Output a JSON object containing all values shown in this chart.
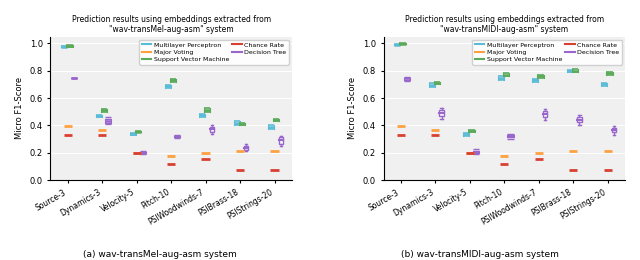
{
  "title_left": "Prediction results using embeddings extracted from\n\"wav-transMel-aug-asm\" system",
  "title_right": "Prediction results using embeddings extracted from\n\"wav-transMIDI-aug-asm\" system",
  "caption_left": "(a) wav-transMel-aug-asm system",
  "caption_right": "(b) wav-transMIDI-aug-asm system",
  "ylabel": "Micro F1-Score",
  "categories": [
    "Source-3",
    "Dynamics-3",
    "Velocity-5",
    "Pitch-10",
    "PSIWoodwinds-7",
    "PSIBrass-18",
    "PSIStrings-20"
  ],
  "ylim": [
    0.0,
    1.05
  ],
  "yticks": [
    0.0,
    0.2,
    0.4,
    0.6,
    0.8,
    1.0
  ],
  "colors": {
    "mlp": "#5bbcd8",
    "svm": "#5aaa5a",
    "dt": "#9966cc",
    "mv": "#ffa040",
    "cr": "#d84030"
  },
  "left": {
    "mlp_lines": [
      [
        0.97,
        0.984
      ],
      [
        0.458,
        0.478
      ],
      [
        0.33,
        0.342
      ],
      [
        0.675,
        0.695
      ],
      [
        0.46,
        0.485
      ],
      [
        0.405,
        0.43
      ],
      [
        0.375,
        0.4
      ]
    ],
    "svm_lines": [
      [
        0.977,
        0.987
      ],
      [
        0.498,
        0.52
      ],
      [
        0.348,
        0.362
      ],
      [
        0.72,
        0.74
      ],
      [
        0.498,
        0.525
      ],
      [
        0.4,
        0.42
      ],
      [
        0.43,
        0.45
      ]
    ],
    "dt": {
      "medians": [
        0.745,
        0.43,
        0.2,
        0.32,
        0.37,
        0.235,
        0.29
      ],
      "q1": [
        0.745,
        0.415,
        0.195,
        0.315,
        0.35,
        0.22,
        0.265
      ],
      "q3": [
        0.745,
        0.445,
        0.205,
        0.325,
        0.39,
        0.25,
        0.315
      ],
      "whislo": [
        0.745,
        0.41,
        0.19,
        0.31,
        0.335,
        0.21,
        0.248
      ],
      "whishi": [
        0.745,
        0.46,
        0.212,
        0.332,
        0.405,
        0.262,
        0.325
      ],
      "show_box": [
        false,
        false,
        false,
        false,
        true,
        true,
        true
      ]
    },
    "mv": [
      0.395,
      0.365,
      0.2,
      0.175,
      0.2,
      0.21,
      0.21
    ],
    "cr": [
      0.333,
      0.333,
      0.2,
      0.12,
      0.155,
      0.07,
      0.07
    ]
  },
  "right": {
    "mlp_lines": [
      [
        0.985,
        0.998
      ],
      [
        0.682,
        0.71
      ],
      [
        0.325,
        0.342
      ],
      [
        0.735,
        0.758
      ],
      [
        0.718,
        0.74
      ],
      [
        0.788,
        0.805
      ],
      [
        0.69,
        0.712
      ]
    ],
    "svm_lines": [
      [
        0.993,
        1.0
      ],
      [
        0.7,
        0.718
      ],
      [
        0.352,
        0.368
      ],
      [
        0.762,
        0.782
      ],
      [
        0.75,
        0.77
      ],
      [
        0.792,
        0.81
      ],
      [
        0.772,
        0.792
      ]
    ],
    "dt": {
      "medians": [
        0.745,
        0.49,
        0.205,
        0.32,
        0.48,
        0.44,
        0.365
      ],
      "q1": [
        0.735,
        0.468,
        0.197,
        0.312,
        0.46,
        0.422,
        0.35
      ],
      "q3": [
        0.75,
        0.51,
        0.215,
        0.33,
        0.502,
        0.458,
        0.382
      ],
      "whislo": [
        0.728,
        0.448,
        0.188,
        0.3,
        0.44,
        0.405,
        0.332
      ],
      "whishi": [
        0.755,
        0.53,
        0.225,
        0.34,
        0.522,
        0.475,
        0.398
      ],
      "show_box": [
        false,
        true,
        false,
        false,
        true,
        true,
        true
      ]
    },
    "mv": [
      0.395,
      0.365,
      0.2,
      0.175,
      0.2,
      0.21,
      0.21
    ],
    "cr": [
      0.333,
      0.333,
      0.2,
      0.12,
      0.155,
      0.07,
      0.07
    ]
  }
}
